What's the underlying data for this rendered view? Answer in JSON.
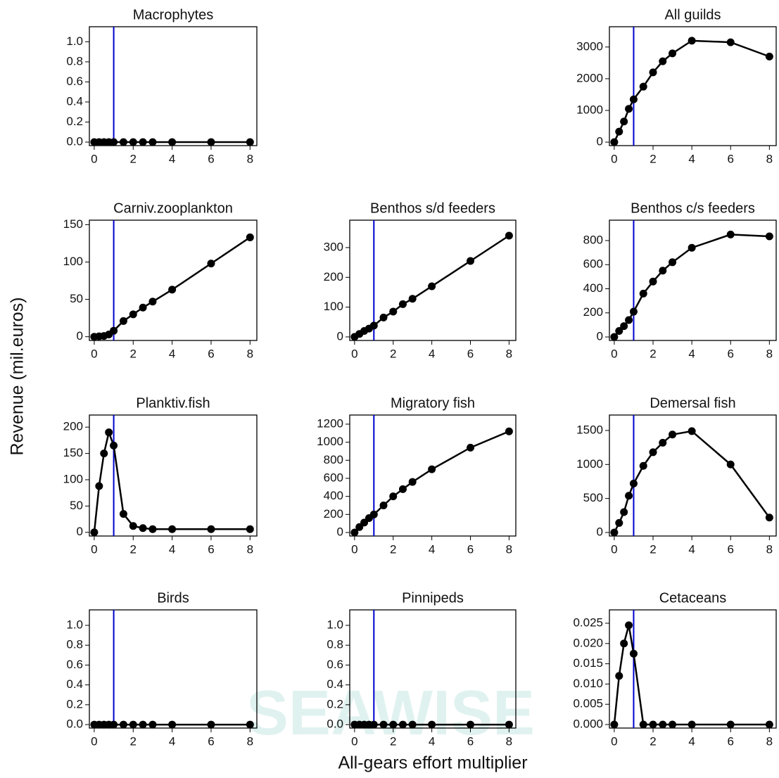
{
  "xlabel": "All-gears effort multiplier",
  "ylabel": "Revenue (mil.euros)",
  "watermark": "SEAWISE",
  "chart_data": [
    {
      "type": "line",
      "title": "Macrophytes",
      "color": "#000000",
      "vline": 1,
      "vline_color": "#0000cc",
      "x": [
        0,
        0.25,
        0.5,
        0.75,
        1,
        1.5,
        2,
        2.5,
        3,
        4,
        6,
        8
      ],
      "values": [
        0,
        0,
        0,
        0,
        0,
        0,
        0,
        0,
        0,
        0,
        0,
        0
      ],
      "xlim": [
        -0.25,
        8.35
      ],
      "xticks": [
        0,
        2,
        4,
        6,
        8
      ],
      "ylim": [
        -0.035,
        1.15
      ],
      "yticks": [
        {
          "value": 0,
          "label": "0.0"
        },
        0.2,
        0.4,
        0.6,
        0.8,
        {
          "value": 1,
          "label": "1.0"
        }
      ]
    },
    {
      "type": "line",
      "title": "All guilds",
      "color": "#000000",
      "vline": 1,
      "vline_color": "#0000cc",
      "x": [
        0,
        0.25,
        0.5,
        0.75,
        1,
        1.5,
        2,
        2.5,
        3,
        4,
        6,
        8
      ],
      "values": [
        0,
        330,
        650,
        1050,
        1350,
        1750,
        2200,
        2550,
        2800,
        3200,
        3150,
        2700
      ],
      "xlim": [
        -0.25,
        8.35
      ],
      "xticks": [
        0,
        2,
        4,
        6,
        8
      ],
      "ylim": [
        -110,
        3640
      ],
      "yticks": [
        0,
        1000,
        2000,
        3000
      ]
    },
    {
      "type": "line",
      "title": "Carniv.zooplankton",
      "color": "#000000",
      "vline": 1,
      "vline_color": "#0000cc",
      "x": [
        0,
        0.25,
        0.5,
        0.75,
        1,
        1.5,
        2,
        2.5,
        3,
        4,
        6,
        8
      ],
      "values": [
        0,
        0.5,
        1,
        3,
        8,
        21,
        30,
        39,
        47,
        63,
        98,
        133
      ],
      "xlim": [
        -0.25,
        8.35
      ],
      "xticks": [
        0,
        2,
        4,
        6,
        8
      ],
      "ylim": [
        -5,
        156
      ],
      "yticks": [
        0,
        50,
        100,
        150
      ]
    },
    {
      "type": "line",
      "title": "Benthos s/d feeders",
      "color": "#000000",
      "vline": 1,
      "vline_color": "#0000cc",
      "x": [
        0,
        0.25,
        0.5,
        0.75,
        1,
        1.5,
        2,
        2.5,
        3,
        4,
        6,
        8
      ],
      "values": [
        0,
        10,
        20,
        28,
        38,
        65,
        85,
        110,
        128,
        170,
        255,
        340
      ],
      "xlim": [
        -0.25,
        8.35
      ],
      "xticks": [
        0,
        2,
        4,
        6,
        8
      ],
      "ylim": [
        -12,
        392
      ],
      "yticks": [
        0,
        100,
        200,
        300
      ]
    },
    {
      "type": "line",
      "title": "Benthos c/s feeders",
      "color": "#000000",
      "vline": 1,
      "vline_color": "#0000cc",
      "x": [
        0,
        0.25,
        0.5,
        0.75,
        1,
        1.5,
        2,
        2.5,
        3,
        4,
        6,
        8
      ],
      "values": [
        0,
        50,
        90,
        140,
        210,
        360,
        460,
        550,
        620,
        740,
        850,
        835
      ],
      "xlim": [
        -0.25,
        8.35
      ],
      "xticks": [
        0,
        2,
        4,
        6,
        8
      ],
      "ylim": [
        -29,
        969
      ],
      "yticks": [
        0,
        200,
        400,
        600,
        800
      ]
    },
    {
      "type": "line",
      "title": "Planktiv.fish",
      "color": "#000000",
      "vline": 1,
      "vline_color": "#0000cc",
      "x": [
        0,
        0.25,
        0.5,
        0.75,
        1,
        1.5,
        2,
        2.5,
        3,
        4,
        6,
        8
      ],
      "values": [
        0,
        88,
        150,
        190,
        165,
        35,
        12,
        8,
        6,
        6,
        6,
        6
      ],
      "xlim": [
        -0.25,
        8.35
      ],
      "xticks": [
        0,
        2,
        4,
        6,
        8
      ],
      "ylim": [
        -7,
        223
      ],
      "yticks": [
        0,
        50,
        100,
        150,
        200
      ]
    },
    {
      "type": "line",
      "title": "Migratory fish",
      "color": "#000000",
      "vline": 1,
      "vline_color": "#0000cc",
      "x": [
        0,
        0.25,
        0.5,
        0.75,
        1,
        1.5,
        2,
        2.5,
        3,
        4,
        6,
        8
      ],
      "values": [
        0,
        60,
        110,
        160,
        200,
        300,
        400,
        480,
        560,
        700,
        940,
        1120
      ],
      "xlim": [
        -0.25,
        8.35
      ],
      "xticks": [
        0,
        2,
        4,
        6,
        8
      ],
      "ylim": [
        -39,
        1301
      ],
      "yticks": [
        0,
        200,
        400,
        600,
        800,
        1000,
        1200
      ]
    },
    {
      "type": "line",
      "title": "Demersal fish",
      "color": "#000000",
      "vline": 1,
      "vline_color": "#0000cc",
      "x": [
        0,
        0.25,
        0.5,
        0.75,
        1,
        1.5,
        2,
        2.5,
        3,
        4,
        6,
        8
      ],
      "values": [
        0,
        140,
        300,
        540,
        720,
        980,
        1180,
        1320,
        1440,
        1490,
        1000,
        220
      ],
      "xlim": [
        -0.25,
        8.35
      ],
      "xticks": [
        0,
        2,
        4,
        6,
        8
      ],
      "ylim": [
        -52,
        1727
      ],
      "yticks": [
        0,
        500,
        1000,
        1500
      ]
    },
    {
      "type": "line",
      "title": "Birds",
      "color": "#000000",
      "vline": 1,
      "vline_color": "#0000cc",
      "x": [
        0,
        0.25,
        0.5,
        0.75,
        1,
        1.5,
        2,
        2.5,
        3,
        4,
        6,
        8
      ],
      "values": [
        0,
        0,
        0,
        0,
        0,
        0,
        0,
        0,
        0,
        0,
        0,
        0
      ],
      "xlim": [
        -0.25,
        8.35
      ],
      "xticks": [
        0,
        2,
        4,
        6,
        8
      ],
      "ylim": [
        -0.035,
        1.156
      ],
      "yticks": [
        {
          "value": 0,
          "label": "0.0"
        },
        0.2,
        0.4,
        0.6,
        0.8,
        {
          "value": 1,
          "label": "1.0"
        }
      ]
    },
    {
      "type": "line",
      "title": "Pinnipeds",
      "color": "#000000",
      "vline": 1,
      "vline_color": "#0000cc",
      "x": [
        0,
        0.25,
        0.5,
        0.75,
        1,
        1.5,
        2,
        2.5,
        3,
        4,
        6,
        8
      ],
      "values": [
        0,
        0,
        0,
        0,
        0,
        0,
        0,
        0,
        0,
        0,
        0,
        0
      ],
      "xlim": [
        -0.25,
        8.35
      ],
      "xticks": [
        0,
        2,
        4,
        6,
        8
      ],
      "ylim": [
        -0.035,
        1.156
      ],
      "yticks": [
        {
          "value": 0,
          "label": "0.0"
        },
        0.2,
        0.4,
        0.6,
        0.8,
        {
          "value": 1,
          "label": "1.0"
        }
      ]
    },
    {
      "type": "line",
      "title": "Cetaceans",
      "color": "#000000",
      "vline": 1,
      "vline_color": "#0000cc",
      "x": [
        0,
        0.25,
        0.5,
        0.75,
        1,
        1.5,
        2,
        2.5,
        3,
        4,
        6,
        8
      ],
      "values": [
        0,
        0.012,
        0.02,
        0.0245,
        0.0175,
        0,
        0,
        0,
        0,
        0,
        0,
        0
      ],
      "xlim": [
        -0.25,
        8.35
      ],
      "xticks": [
        0,
        2,
        4,
        6,
        8
      ],
      "ylim": [
        -0.00087,
        0.0283
      ],
      "yticks": [
        {
          "value": 0,
          "label": "0.000"
        },
        0.005,
        {
          "value": 0.01,
          "label": "0.010"
        },
        0.015,
        {
          "value": 0.02,
          "label": "0.020"
        },
        0.025
      ]
    }
  ]
}
